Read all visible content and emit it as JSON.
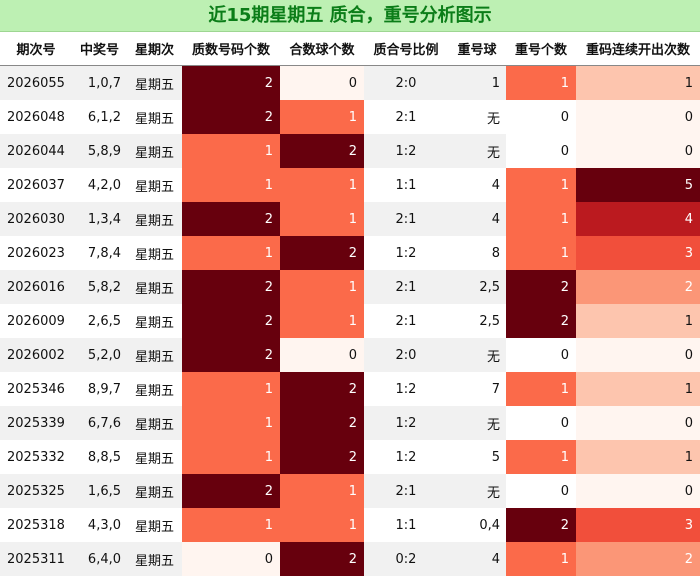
{
  "title": "近15期星期五 质合，重号分析图示",
  "columns": [
    "期次号",
    "中奖号",
    "星期次",
    "质数号码个数",
    "合数球个数",
    "质合号比例",
    "重号球",
    "重号个数",
    "重码连续开出次数"
  ],
  "rows": [
    {
      "issue": "2026055",
      "win": "1,0,7",
      "week": "星期五",
      "prime": "2",
      "composite": "0",
      "ratio": "2:0",
      "rep_ball": "1",
      "rep_count": "1",
      "streak": "1"
    },
    {
      "issue": "2026048",
      "win": "6,1,2",
      "week": "星期五",
      "prime": "2",
      "composite": "1",
      "ratio": "2:1",
      "rep_ball": "无",
      "rep_count": "0",
      "streak": "0"
    },
    {
      "issue": "2026044",
      "win": "5,8,9",
      "week": "星期五",
      "prime": "1",
      "composite": "2",
      "ratio": "1:2",
      "rep_ball": "无",
      "rep_count": "0",
      "streak": "0"
    },
    {
      "issue": "2026037",
      "win": "4,2,0",
      "week": "星期五",
      "prime": "1",
      "composite": "1",
      "ratio": "1:1",
      "rep_ball": "4",
      "rep_count": "1",
      "streak": "5"
    },
    {
      "issue": "2026030",
      "win": "1,3,4",
      "week": "星期五",
      "prime": "2",
      "composite": "1",
      "ratio": "2:1",
      "rep_ball": "4",
      "rep_count": "1",
      "streak": "4"
    },
    {
      "issue": "2026023",
      "win": "7,8,4",
      "week": "星期五",
      "prime": "1",
      "composite": "2",
      "ratio": "1:2",
      "rep_ball": "8",
      "rep_count": "1",
      "streak": "3"
    },
    {
      "issue": "2026016",
      "win": "5,8,2",
      "week": "星期五",
      "prime": "2",
      "composite": "1",
      "ratio": "2:1",
      "rep_ball": "2,5",
      "rep_count": "2",
      "streak": "2"
    },
    {
      "issue": "2026009",
      "win": "2,6,5",
      "week": "星期五",
      "prime": "2",
      "composite": "1",
      "ratio": "2:1",
      "rep_ball": "2,5",
      "rep_count": "2",
      "streak": "1"
    },
    {
      "issue": "2026002",
      "win": "5,2,0",
      "week": "星期五",
      "prime": "2",
      "composite": "0",
      "ratio": "2:0",
      "rep_ball": "无",
      "rep_count": "0",
      "streak": "0"
    },
    {
      "issue": "2025346",
      "win": "8,9,7",
      "week": "星期五",
      "prime": "1",
      "composite": "2",
      "ratio": "1:2",
      "rep_ball": "7",
      "rep_count": "1",
      "streak": "1"
    },
    {
      "issue": "2025339",
      "win": "6,7,6",
      "week": "星期五",
      "prime": "1",
      "composite": "2",
      "ratio": "1:2",
      "rep_ball": "无",
      "rep_count": "0",
      "streak": "0"
    },
    {
      "issue": "2025332",
      "win": "8,8,5",
      "week": "星期五",
      "prime": "1",
      "composite": "2",
      "ratio": "1:2",
      "rep_ball": "5",
      "rep_count": "1",
      "streak": "1"
    },
    {
      "issue": "2025325",
      "win": "1,6,5",
      "week": "星期五",
      "prime": "2",
      "composite": "1",
      "ratio": "2:1",
      "rep_ball": "无",
      "rep_count": "0",
      "streak": "0"
    },
    {
      "issue": "2025318",
      "win": "4,3,0",
      "week": "星期五",
      "prime": "1",
      "composite": "1",
      "ratio": "1:1",
      "rep_ball": "0,4",
      "rep_count": "2",
      "streak": "3"
    },
    {
      "issue": "2025311",
      "win": "6,4,0",
      "week": "星期五",
      "prime": "0",
      "composite": "2",
      "ratio": "0:2",
      "rep_ball": "4",
      "rep_count": "1",
      "streak": "2"
    }
  ],
  "colors": {
    "title_bg": "#bdf0b3",
    "title_text": "#0b7d18",
    "heat_high": "#67000d",
    "heat_mid": "#fb6a4a",
    "heat_low": "#fff5f0"
  }
}
